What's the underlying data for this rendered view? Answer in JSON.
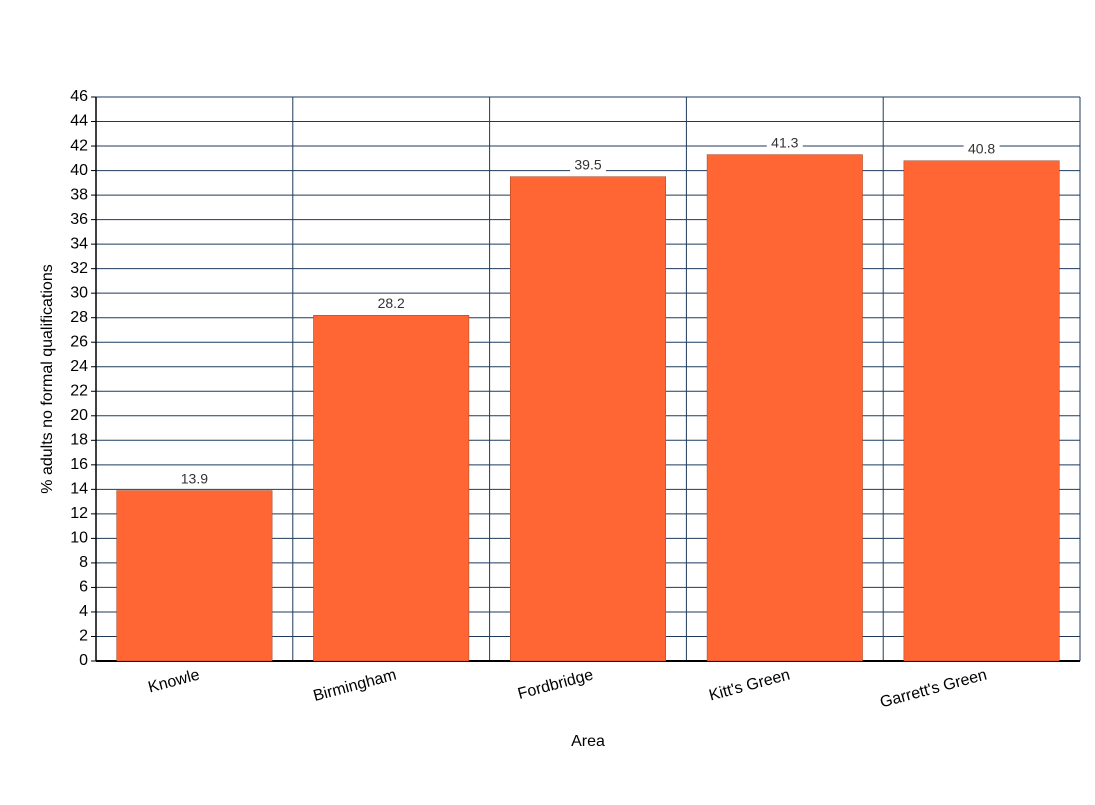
{
  "chart_data": {
    "type": "bar",
    "x_label": "Area",
    "y_label": "% adults no formal qualifications",
    "categories": [
      "Knowle",
      "Birmingham",
      "Fordbridge",
      "Kitt's Green",
      "Garrett's Green"
    ],
    "values": [
      13.9,
      28.2,
      39.5,
      41.3,
      40.8
    ],
    "color": "#ff6633",
    "ylim": [
      0,
      46
    ],
    "yticks": [
      0,
      2,
      4,
      6,
      8,
      10,
      12,
      14,
      16,
      18,
      20,
      22,
      24,
      26,
      28,
      30,
      32,
      34,
      36,
      38,
      40,
      42,
      44,
      46
    ],
    "grid": true
  }
}
